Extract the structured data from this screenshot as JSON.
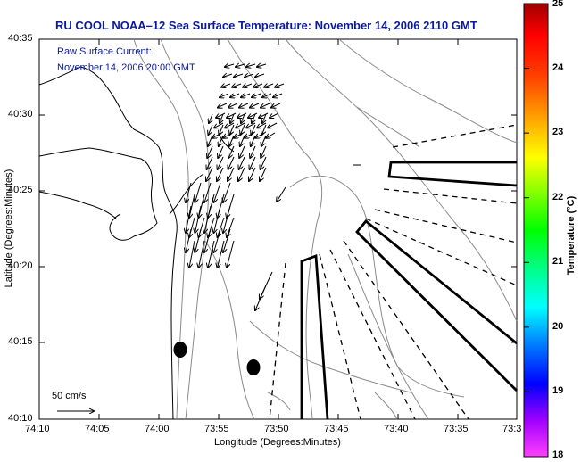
{
  "title": "RU COOL  NOAA–12  Sea Surface Temperature:  November 14, 2006 2110 GMT",
  "current_label": "Raw Surface Current:",
  "current_time": "November 14, 2006 20:00 GMT",
  "scale_label": "50 cm/s",
  "x_axis": {
    "title": "Longitude (Degrees:Minutes)",
    "ticks": [
      "74:10",
      "74:05",
      "74:00",
      "73:55",
      "73:50",
      "73:45",
      "73:40",
      "73:35",
      "73:3"
    ]
  },
  "y_axis": {
    "title": "Latitude (Degrees:Minutes)",
    "ticks": [
      "40:35",
      "40:30",
      "40:25",
      "40:20",
      "40:15",
      "40:10"
    ]
  },
  "colorbar": {
    "title": "Temperature (°C)",
    "ticks": [
      "25",
      "24",
      "23",
      "22",
      "21",
      "20",
      "19",
      "18"
    ],
    "range": [
      18,
      25
    ],
    "colors": [
      "#ff40ff",
      "#a000ff",
      "#0000ff",
      "#0080ff",
      "#00ffff",
      "#00ff80",
      "#00ff00",
      "#80ff00",
      "#ffff00",
      "#ffa000",
      "#ff4000",
      "#ff0000",
      "#a00000"
    ]
  },
  "colors": {
    "title": "#0a1a9c",
    "coast": "#000000",
    "contour": "#8a8a8a"
  }
}
